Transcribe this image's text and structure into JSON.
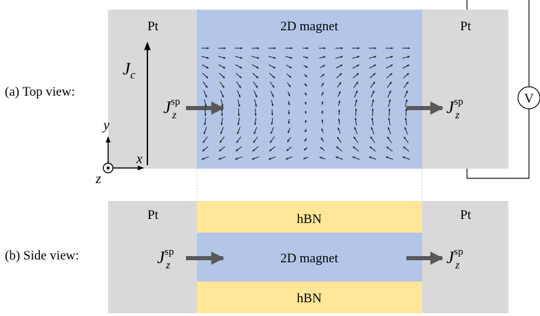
{
  "colors": {
    "pt": "#d9d9d9",
    "magnet": "#b4c6e7",
    "hbn": "#ffe699",
    "arrow_gray": "#595959",
    "field_arrow": "#1a1a1a",
    "dotted_line": "#c8c8c8"
  },
  "top_view": {
    "label": "(a) Top view:",
    "left_electrode": "Pt",
    "center_material": "2D magnet",
    "right_electrode": "Pt",
    "current_symbol": "J",
    "current_subscript": "c",
    "spin_current_symbol": "J",
    "spin_current_sup": "sp",
    "spin_current_sub": "z",
    "voltmeter": "V",
    "axes": {
      "x": "x",
      "y": "y",
      "z": "z"
    }
  },
  "side_view": {
    "label": "(b) Side view:",
    "left_electrode": "Pt",
    "right_electrode": "Pt",
    "top_layer": "hBN",
    "middle_layer": "2D magnet",
    "bottom_layer": "hBN",
    "spin_current_symbol": "J",
    "spin_current_sup": "sp",
    "spin_current_sub": "z"
  }
}
